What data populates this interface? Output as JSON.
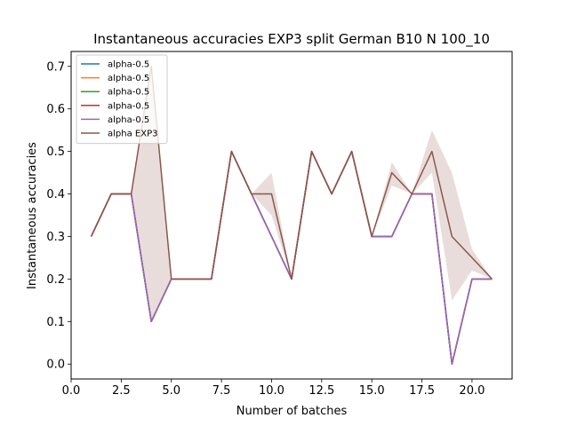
{
  "chart_data": {
    "type": "line",
    "title": "Instantaneous accuracies EXP3 split German B10 N 100_10",
    "xlabel": "Number of batches",
    "ylabel": "Instantaneous accuracies",
    "xlim": [
      0,
      22.0
    ],
    "ylim": [
      -0.035,
      0.735
    ],
    "xticks": [
      0.0,
      2.5,
      5.0,
      7.5,
      10.0,
      12.5,
      15.0,
      17.5,
      20.0
    ],
    "xtick_labels": [
      "0.0",
      "2.5",
      "5.0",
      "7.5",
      "10.0",
      "12.5",
      "15.0",
      "17.5",
      "20.0"
    ],
    "yticks": [
      0.0,
      0.1,
      0.2,
      0.3,
      0.4,
      0.5,
      0.6,
      0.7
    ],
    "ytick_labels": [
      "0.0",
      "0.1",
      "0.2",
      "0.3",
      "0.4",
      "0.5",
      "0.6",
      "0.7"
    ],
    "grid": false,
    "legend_position": "top-left",
    "x": [
      1,
      2,
      3,
      4,
      5,
      6,
      7,
      8,
      9,
      10,
      11,
      12,
      13,
      14,
      15,
      16,
      17,
      18,
      19,
      20,
      21
    ],
    "series": [
      {
        "name": "alpha-0.5",
        "color": "#1f77b4",
        "values": [
          0.3,
          0.4,
          0.4,
          0.1,
          0.2,
          0.2,
          0.2,
          0.5,
          0.4,
          0.3,
          0.2,
          0.5,
          0.4,
          0.5,
          0.3,
          0.3,
          0.4,
          0.4,
          0.0,
          0.2,
          0.2
        ]
      },
      {
        "name": "alpha-0.5",
        "color": "#ff7f0e",
        "values": [
          0.3,
          0.4,
          0.4,
          0.1,
          0.2,
          0.2,
          0.2,
          0.5,
          0.4,
          0.3,
          0.2,
          0.5,
          0.4,
          0.5,
          0.3,
          0.3,
          0.4,
          0.4,
          0.0,
          0.2,
          0.2
        ]
      },
      {
        "name": "alpha-0.5",
        "color": "#2ca02c",
        "values": [
          0.3,
          0.4,
          0.4,
          0.1,
          0.2,
          0.2,
          0.2,
          0.5,
          0.4,
          0.3,
          0.2,
          0.5,
          0.4,
          0.5,
          0.3,
          0.3,
          0.4,
          0.4,
          0.0,
          0.2,
          0.2
        ]
      },
      {
        "name": "alpha-0.5",
        "color": "#d62728",
        "values": [
          0.3,
          0.4,
          0.4,
          0.1,
          0.2,
          0.2,
          0.2,
          0.5,
          0.4,
          0.3,
          0.2,
          0.5,
          0.4,
          0.5,
          0.3,
          0.3,
          0.4,
          0.4,
          0.0,
          0.2,
          0.2
        ]
      },
      {
        "name": "alpha-0.5",
        "color": "#9467bd",
        "values": [
          0.3,
          0.4,
          0.4,
          0.1,
          0.2,
          0.2,
          0.2,
          0.5,
          0.4,
          0.3,
          0.2,
          0.5,
          0.4,
          0.5,
          0.3,
          0.3,
          0.4,
          0.4,
          0.0,
          0.2,
          0.2
        ]
      },
      {
        "name": "alpha EXP3",
        "color": "#8c564b",
        "values": [
          0.3,
          0.4,
          0.4,
          0.7,
          0.2,
          0.2,
          0.2,
          0.5,
          0.4,
          0.4,
          0.2,
          0.5,
          0.4,
          0.5,
          0.3,
          0.45,
          0.4,
          0.5,
          0.3,
          0.25,
          0.2
        ],
        "band_lower": [
          0.3,
          0.4,
          0.4,
          0.1,
          0.2,
          0.2,
          0.2,
          0.5,
          0.4,
          0.35,
          0.2,
          0.5,
          0.4,
          0.5,
          0.3,
          0.42,
          0.4,
          0.45,
          0.15,
          0.22,
          0.2
        ],
        "band_upper": [
          0.3,
          0.4,
          0.4,
          0.7,
          0.2,
          0.2,
          0.2,
          0.5,
          0.4,
          0.45,
          0.2,
          0.5,
          0.4,
          0.5,
          0.3,
          0.475,
          0.4,
          0.55,
          0.45,
          0.27,
          0.2
        ],
        "band_color": "#8c564b"
      }
    ]
  }
}
